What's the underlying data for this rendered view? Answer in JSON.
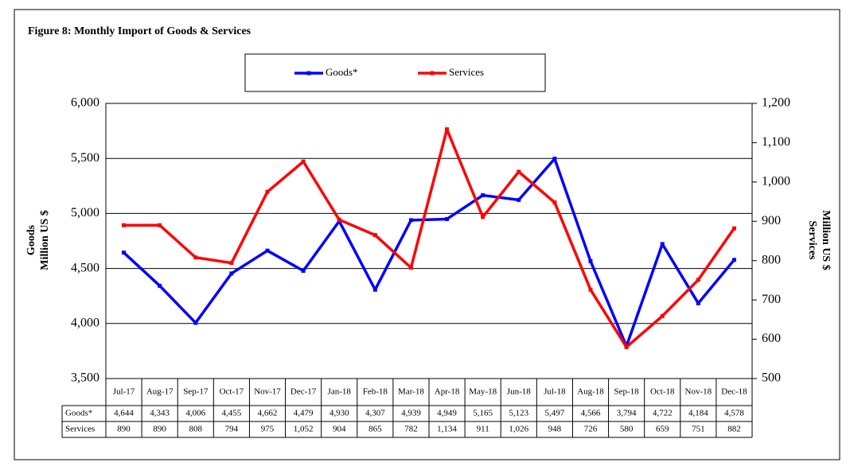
{
  "chart_data": {
    "type": "line",
    "title": "Figure 8: Monthly Import of Goods & Services",
    "y_label": [
      "Goods",
      "Million US $"
    ],
    "y2_label": [
      "Services",
      "Million US $"
    ],
    "categories": [
      "Jul-17",
      "Aug-17",
      "Sep-17",
      "Oct-17",
      "Nov-17",
      "Dec-17",
      "Jan-18",
      "Feb-18",
      "Mar-18",
      "Apr-18",
      "May-18",
      "Jun-18",
      "Jul-18",
      "Aug-18",
      "Sep-18",
      "Oct-18",
      "Nov-18",
      "Dec-18"
    ],
    "series": [
      {
        "name": "Goods*",
        "color": "#0000ff",
        "values": [
          4644,
          4343,
          4006,
          4455,
          4662,
          4479,
          4930,
          4307,
          4939,
          4949,
          5165,
          5123,
          5497,
          4566,
          3794,
          4722,
          4184,
          4578
        ],
        "value_labels": [
          "4,644",
          "4,343",
          "4,006",
          "4,455",
          "4,662",
          "4,479",
          "4,930",
          "4,307",
          "4,939",
          "4,949",
          "5,165",
          "5,123",
          "5,497",
          "4,566",
          "3,794",
          "4,722",
          "4,184",
          "4,578"
        ]
      },
      {
        "name": "Services",
        "color": "#ff0000",
        "axis": "y2",
        "values": [
          890,
          890,
          808,
          794,
          975,
          1052,
          904,
          865,
          782,
          1134,
          911,
          1026,
          948,
          726,
          580,
          659,
          751,
          882
        ],
        "value_labels": [
          "890",
          "890",
          "808",
          "794",
          "975",
          "1,052",
          "904",
          "865",
          "782",
          "1,134",
          "911",
          "1,026",
          "948",
          "726",
          "580",
          "659",
          "751",
          "882"
        ]
      }
    ],
    "ylim": [
      3500,
      6000
    ],
    "yticks": [
      {
        "value": 3500,
        "label": "3,500"
      },
      {
        "value": 4000,
        "label": "4,000"
      },
      {
        "value": 4500,
        "label": "4,500"
      },
      {
        "value": 5000,
        "label": "5,000"
      },
      {
        "value": 5500,
        "label": "5,500"
      },
      {
        "value": 6000,
        "label": "6,000"
      }
    ],
    "y2lim": [
      500,
      1200
    ],
    "y2ticks": [
      500,
      600,
      700,
      800,
      900,
      {
        "value": 1000,
        "label": "1,000"
      },
      {
        "value": 1100,
        "label": "1,100"
      },
      {
        "value": 1200,
        "label": "1,200"
      }
    ],
    "grid": true,
    "legend": "top"
  }
}
